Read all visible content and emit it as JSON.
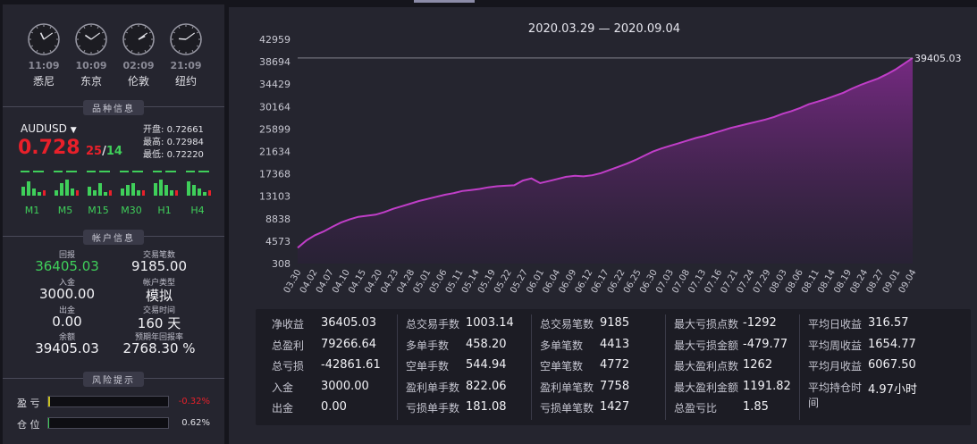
{
  "clocks": [
    {
      "time": "11:09",
      "city": "悉尼",
      "h": 11,
      "m": 9
    },
    {
      "time": "10:09",
      "city": "东京",
      "h": 10,
      "m": 9
    },
    {
      "time": "02:09",
      "city": "伦敦",
      "h": 2,
      "m": 9
    },
    {
      "time": "21:09",
      "city": "纽约",
      "h": 21,
      "m": 9
    }
  ],
  "instrument": {
    "header": "品种信息",
    "symbol": "AUDUSD",
    "price_big": "0.728",
    "price_mid": "25",
    "price_sep": "/",
    "price_sub": "14",
    "open_label": "开盘:",
    "open": "0.72661",
    "high_label": "最高:",
    "high": "0.72984",
    "low_label": "最低:",
    "low": "0.72220",
    "timeframes": [
      "M1",
      "M5",
      "M15",
      "M30",
      "H1",
      "H4"
    ]
  },
  "account": {
    "header": "帐户信息",
    "profit_label": "回报",
    "profit": "36405.03",
    "trades_label": "交易笔数",
    "trades": "9185.00",
    "deposit_label": "入金",
    "deposit": "3000.00",
    "type_label": "帐户类型",
    "type": "模拟",
    "withdraw_label": "出金",
    "withdraw": "0.00",
    "time_label": "交易时间",
    "time": "160 天",
    "balance_label": "余额",
    "balance": "39405.03",
    "annual_label": "预期年回报率",
    "annual": "2768.30 %"
  },
  "risk": {
    "header": "风险提示",
    "pl_label": "盈 亏",
    "pl_value": "-0.32%",
    "pl_fill": 0.0032,
    "pos_label": "仓 位",
    "pos_value": "0.62%",
    "pos_fill": 0.0062
  },
  "colors": {
    "accent": "#b03ab8",
    "red": "#e8202a",
    "green": "#3fcf5a"
  },
  "chart_data": {
    "type": "area",
    "title": "2020.03.29 — 2020.09.04",
    "ylim": [
      308,
      42959
    ],
    "yticks": [
      "42959",
      "38694",
      "34429",
      "30164",
      "25899",
      "21634",
      "17368",
      "13103",
      "8838",
      "4573",
      "308"
    ],
    "xticks": [
      "03.30",
      "04.02",
      "04.07",
      "04.10",
      "04.15",
      "04.20",
      "04.23",
      "04.28",
      "05.01",
      "05.06",
      "05.11",
      "05.14",
      "05.19",
      "05.22",
      "05.27",
      "06.01",
      "06.04",
      "06.09",
      "06.12",
      "06.17",
      "06.22",
      "06.25",
      "06.30",
      "07.03",
      "07.08",
      "07.13",
      "07.16",
      "07.21",
      "07.24",
      "07.29",
      "08.03",
      "08.06",
      "08.11",
      "08.14",
      "08.19",
      "08.24",
      "08.27",
      "09.01",
      "09.04"
    ],
    "last_label": "39405.03",
    "last_value": 39405.03,
    "values": [
      3300,
      4700,
      5700,
      6400,
      7300,
      8100,
      8700,
      9200,
      9400,
      9600,
      10100,
      10700,
      11200,
      11700,
      12200,
      12600,
      13000,
      13400,
      13700,
      14100,
      14300,
      14500,
      14800,
      15000,
      15100,
      15200,
      16100,
      16500,
      15600,
      16000,
      16400,
      16800,
      17000,
      16900,
      17100,
      17500,
      18100,
      18700,
      19300,
      20000,
      20800,
      21600,
      22200,
      22700,
      23200,
      23700,
      24200,
      24600,
      25100,
      25600,
      26100,
      26500,
      26900,
      27300,
      27700,
      28200,
      28800,
      29300,
      29900,
      30600,
      31100,
      31600,
      32200,
      32800,
      33600,
      34300,
      34900,
      35500,
      36300,
      37200,
      38300,
      39405
    ]
  },
  "stats": [
    [
      [
        "净收益",
        "36405.03"
      ],
      [
        "总盈利",
        "79266.64"
      ],
      [
        "总亏损",
        "-42861.61"
      ],
      [
        "入金",
        "3000.00"
      ],
      [
        "出金",
        "0.00"
      ]
    ],
    [
      [
        "总交易手数",
        "1003.14"
      ],
      [
        "多单手数",
        "458.20"
      ],
      [
        "空单手数",
        "544.94"
      ],
      [
        "盈利单手数",
        "822.06"
      ],
      [
        "亏损单手数",
        "181.08"
      ]
    ],
    [
      [
        "总交易笔数",
        "9185"
      ],
      [
        "多单笔数",
        "4413"
      ],
      [
        "空单笔数",
        "4772"
      ],
      [
        "盈利单笔数",
        "7758"
      ],
      [
        "亏损单笔数",
        "1427"
      ]
    ],
    [
      [
        "最大亏损点数",
        "-1292"
      ],
      [
        "最大亏损金额",
        "-479.77"
      ],
      [
        "最大盈利点数",
        "1262"
      ],
      [
        "最大盈利金额",
        "1191.82"
      ],
      [
        "总盈亏比",
        "1.85"
      ]
    ],
    [
      [
        "平均日收益",
        "316.57"
      ],
      [
        "平均周收益",
        "1654.77"
      ],
      [
        "平均月收益",
        "6067.50"
      ],
      [
        "平均持仓时间",
        "4.97小时"
      ]
    ]
  ]
}
